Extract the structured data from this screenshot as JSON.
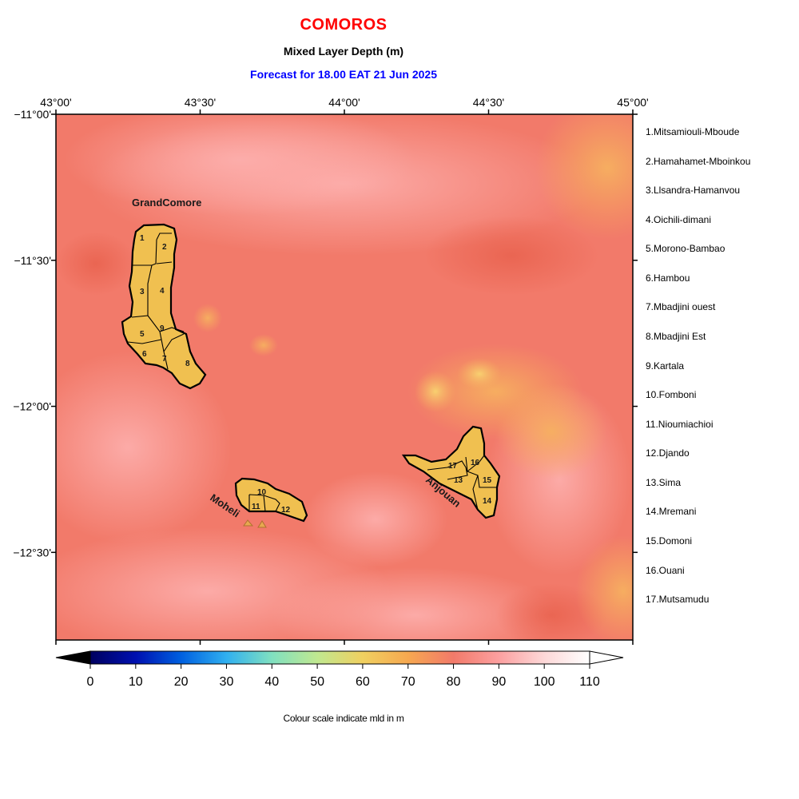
{
  "header": {
    "title": "COMOROS",
    "subtitle": "Mixed Layer Depth (m)",
    "forecast": "Forecast for  18.00 EAT 21 Jun 2025"
  },
  "map": {
    "lon_range": [
      43.0,
      45.0
    ],
    "lat_range": [
      -12.8,
      -11.0
    ],
    "lon_ticks": [
      {
        "value": 43.0,
        "label": "43°00'"
      },
      {
        "value": 43.5,
        "label": "43°30'"
      },
      {
        "value": 44.0,
        "label": "44°00'"
      },
      {
        "value": 44.5,
        "label": "44°30'"
      },
      {
        "value": 45.0,
        "label": "45°00'"
      }
    ],
    "lat_ticks": [
      {
        "value": -11.0,
        "label": "−11°00'"
      },
      {
        "value": -11.5,
        "label": "−11°30'"
      },
      {
        "value": -12.0,
        "label": "−12°00'"
      },
      {
        "value": -12.5,
        "label": "−12°30'"
      }
    ],
    "field_colors": {
      "base": "#f27a6a",
      "light": "#fca0a0",
      "warm": "#f6a85c",
      "land": "#f0c050"
    },
    "islands": [
      {
        "name": "GrandComore",
        "regions": [
          "1",
          "2",
          "3",
          "4",
          "5",
          "6",
          "7",
          "8",
          "9"
        ]
      },
      {
        "name": "Moheli",
        "regions": [
          "10",
          "11",
          "12"
        ]
      },
      {
        "name": "Anjouan",
        "regions": [
          "13",
          "14",
          "15",
          "16",
          "17"
        ]
      }
    ]
  },
  "regions": [
    "1.Mitsamiouli-Mboude",
    "2.Hamahamet-Mboinkou",
    "3.Llsandra-Hamanvou",
    "4.Oichili-dimani",
    "5.Morono-Bambao",
    "6.Hambou",
    "7.Mbadjini ouest",
    "8.Mbadjini Est",
    "9.Kartala",
    "10.Fomboni",
    "11.Nioumiachioi",
    "12.Djando",
    "13.Sima",
    "14.Mremani",
    "15.Domoni",
    "16.Ouani",
    "17.Mutsamudu"
  ],
  "colorbar": {
    "ticks": [
      "0",
      "10",
      "20",
      "30",
      "40",
      "50",
      "60",
      "70",
      "80",
      "90",
      "100",
      "110"
    ],
    "min": 0,
    "max": 110,
    "stops": [
      "#000060",
      "#0010b0",
      "#0060e0",
      "#30b0f0",
      "#80e0c0",
      "#c0e890",
      "#f0d060",
      "#f6a850",
      "#f27a6a",
      "#fca0a0",
      "#fdd8d8",
      "#ffffff"
    ]
  },
  "caption": "Colour scale indicate mld in m"
}
